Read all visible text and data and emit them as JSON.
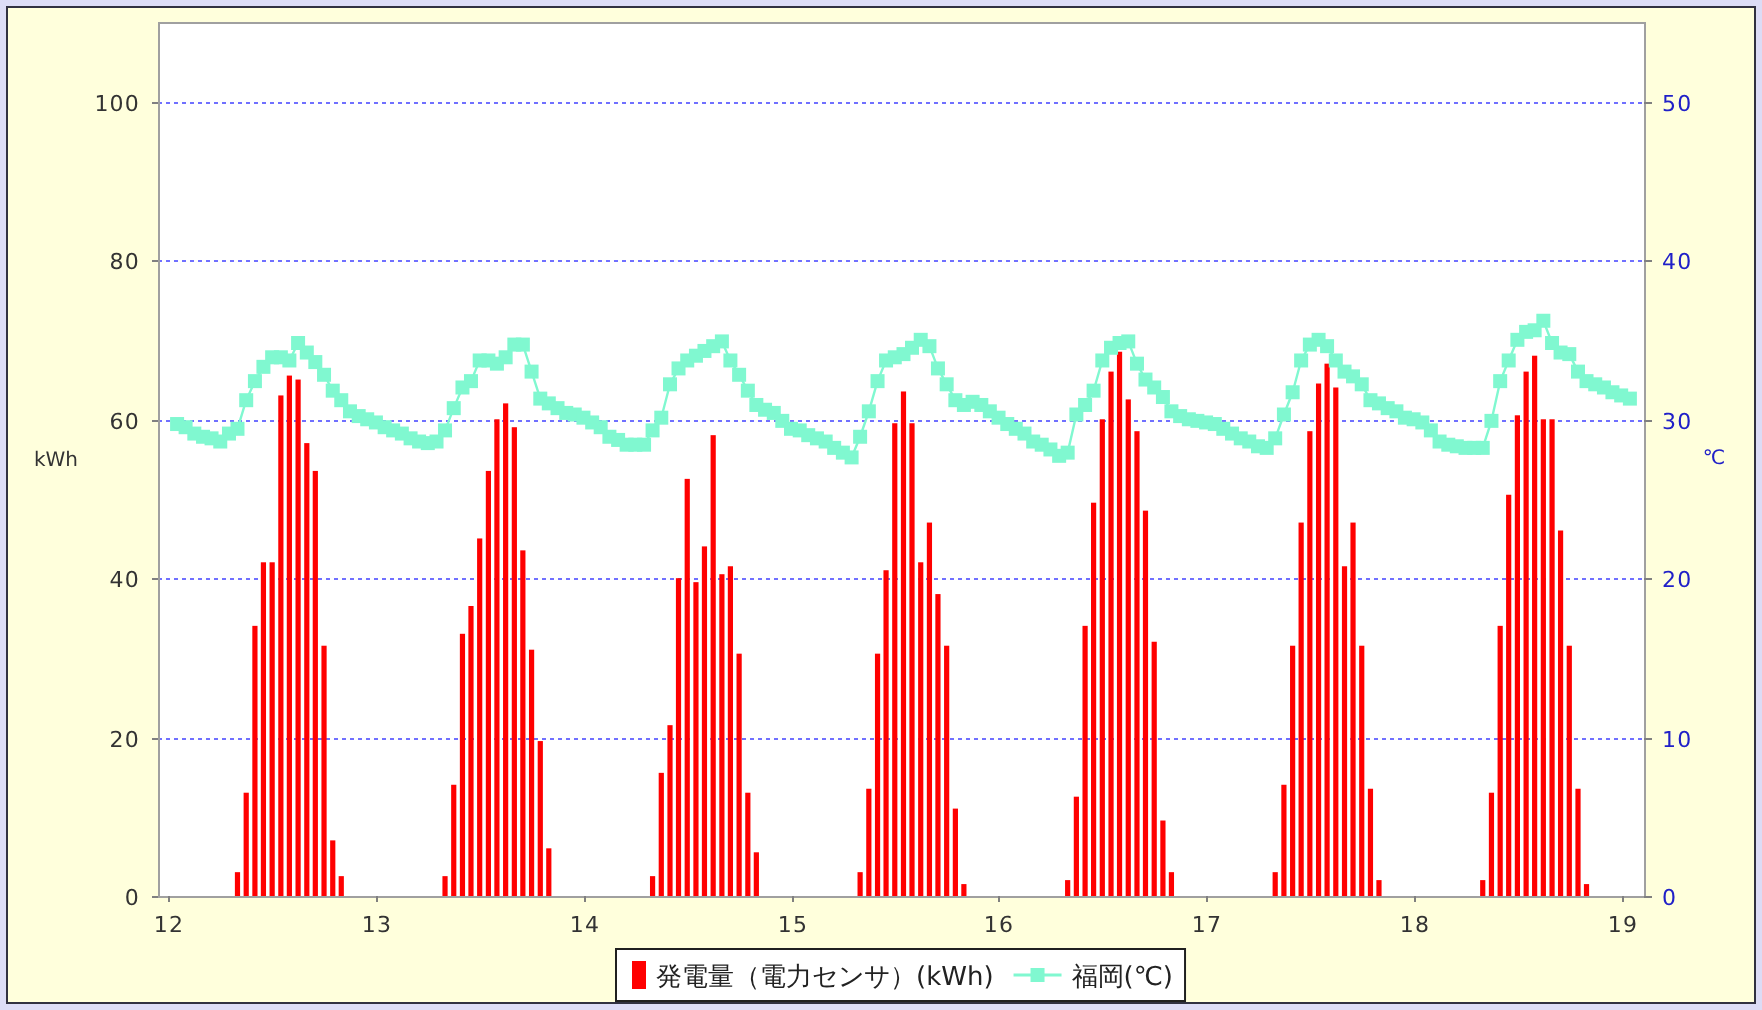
{
  "chart_data": {
    "type": "bar",
    "ylabel": "kWh",
    "y2label": "℃",
    "xlim": [
      11.95,
      19.11
    ],
    "xticks": [
      12,
      13,
      14,
      15,
      16,
      17,
      18,
      19
    ],
    "ylim": [
      0,
      110
    ],
    "yticks": [
      0,
      20,
      40,
      60,
      80,
      100
    ],
    "y2lim": [
      0,
      55
    ],
    "y2ticks": [
      0,
      10,
      20,
      30,
      40,
      50
    ],
    "grid": "y",
    "legend": "bottom",
    "series": [
      {
        "name": "発電量（電力センサ）(kWh)",
        "color": "#ff0000",
        "x": [
          12.333,
          12.375,
          12.417,
          12.458,
          12.5,
          12.542,
          12.583,
          12.625,
          12.667,
          12.708,
          12.75,
          12.792,
          12.833,
          13.333,
          13.375,
          13.417,
          13.458,
          13.5,
          13.542,
          13.583,
          13.625,
          13.667,
          13.708,
          13.75,
          13.792,
          13.833,
          14.333,
          14.375,
          14.417,
          14.458,
          14.5,
          14.542,
          14.583,
          14.625,
          14.667,
          14.708,
          14.75,
          14.792,
          14.833,
          15.333,
          15.375,
          15.417,
          15.458,
          15.5,
          15.542,
          15.583,
          15.625,
          15.667,
          15.708,
          15.75,
          15.792,
          15.833,
          16.333,
          16.375,
          16.417,
          16.458,
          16.5,
          16.542,
          16.583,
          16.625,
          16.667,
          16.708,
          16.75,
          16.792,
          16.833,
          17.333,
          17.375,
          17.417,
          17.458,
          17.5,
          17.542,
          17.583,
          17.625,
          17.667,
          17.708,
          17.75,
          17.792,
          17.833,
          18.333,
          18.375,
          18.417,
          18.458,
          18.5,
          18.542,
          18.583,
          18.625,
          18.667,
          18.708,
          18.75,
          18.792,
          18.833
        ],
        "values": [
          3,
          13,
          34,
          42,
          42,
          63,
          65.5,
          65,
          57,
          53.5,
          31.5,
          7,
          2.5,
          2.5,
          14,
          33,
          36.5,
          45,
          53.5,
          60,
          62,
          59,
          43.5,
          31,
          19.5,
          6,
          2.5,
          15.5,
          21.5,
          40,
          52.5,
          39.5,
          44,
          58,
          40.5,
          41.5,
          30.5,
          13,
          5.5,
          3,
          13.5,
          30.5,
          41,
          59.5,
          63.5,
          59.5,
          42,
          47,
          38,
          31.5,
          11,
          1.5,
          2,
          12.5,
          34,
          49.5,
          60,
          66,
          68.5,
          62.5,
          58.5,
          48.5,
          32,
          9.5,
          3,
          3,
          14,
          31.5,
          47,
          58.5,
          64.5,
          67,
          64,
          41.5,
          47,
          31.5,
          13.5,
          2,
          2,
          13,
          34,
          50.5,
          60.5,
          66,
          68,
          60,
          60,
          46,
          31.5,
          13.5,
          1.5
        ]
      },
      {
        "name": "福岡(℃)",
        "type": "line",
        "axis": "y2",
        "color": "#80f8d0",
        "marker": "square",
        "line_style": "solid",
        "x": [
          12.042,
          12.083,
          12.125,
          12.167,
          12.208,
          12.25,
          12.292,
          12.333,
          12.375,
          12.417,
          12.458,
          12.5,
          12.542,
          12.583,
          12.625,
          12.667,
          12.708,
          12.75,
          12.792,
          12.833,
          12.875,
          12.917,
          12.958,
          13,
          13.042,
          13.083,
          13.125,
          13.167,
          13.208,
          13.25,
          13.292,
          13.333,
          13.375,
          13.417,
          13.458,
          13.5,
          13.542,
          13.583,
          13.625,
          13.667,
          13.708,
          13.75,
          13.792,
          13.833,
          13.875,
          13.917,
          13.958,
          14,
          14.042,
          14.083,
          14.125,
          14.167,
          14.208,
          14.25,
          14.292,
          14.333,
          14.375,
          14.417,
          14.458,
          14.5,
          14.542,
          14.583,
          14.625,
          14.667,
          14.708,
          14.75,
          14.792,
          14.833,
          14.875,
          14.917,
          14.958,
          15,
          15.042,
          15.083,
          15.125,
          15.167,
          15.208,
          15.25,
          15.292,
          15.333,
          15.375,
          15.417,
          15.458,
          15.5,
          15.542,
          15.583,
          15.625,
          15.667,
          15.708,
          15.75,
          15.792,
          15.833,
          15.875,
          15.917,
          15.958,
          16,
          16.042,
          16.083,
          16.125,
          16.167,
          16.208,
          16.25,
          16.292,
          16.333,
          16.375,
          16.417,
          16.458,
          16.5,
          16.542,
          16.583,
          16.625,
          16.667,
          16.708,
          16.75,
          16.792,
          16.833,
          16.875,
          16.917,
          16.958,
          17,
          17.042,
          17.083,
          17.125,
          17.167,
          17.208,
          17.25,
          17.292,
          17.333,
          17.375,
          17.417,
          17.458,
          17.5,
          17.542,
          17.583,
          17.625,
          17.667,
          17.708,
          17.75,
          17.792,
          17.833,
          17.875,
          17.917,
          17.958,
          18,
          18.042,
          18.083,
          18.125,
          18.167,
          18.208,
          18.25,
          18.292,
          18.333,
          18.375,
          18.417,
          18.458,
          18.5,
          18.542,
          18.583,
          18.625,
          18.667,
          18.708,
          18.75,
          18.792,
          18.833,
          18.875,
          18.917,
          18.958,
          19,
          19.042
        ],
        "values": [
          29.7,
          29.5,
          29.1,
          28.9,
          28.8,
          28.6,
          29.1,
          29.4,
          31.2,
          32.4,
          33.3,
          33.9,
          33.9,
          33.7,
          34.8,
          34.2,
          33.6,
          32.8,
          31.8,
          31.2,
          30.5,
          30.2,
          30.0,
          29.8,
          29.5,
          29.3,
          29.1,
          28.8,
          28.6,
          28.5,
          28.6,
          29.3,
          30.7,
          32.0,
          32.4,
          33.7,
          33.7,
          33.5,
          33.9,
          34.7,
          34.7,
          33.0,
          31.3,
          31.0,
          30.7,
          30.4,
          30.3,
          30.1,
          29.8,
          29.5,
          28.9,
          28.7,
          28.4,
          28.4,
          28.4,
          29.3,
          30.1,
          32.2,
          33.2,
          33.7,
          34.0,
          34.3,
          34.6,
          34.9,
          33.7,
          32.8,
          31.8,
          30.9,
          30.6,
          30.4,
          29.9,
          29.4,
          29.3,
          29.0,
          28.8,
          28.6,
          28.2,
          27.9,
          27.6,
          28.9,
          30.5,
          32.4,
          33.7,
          33.9,
          34.1,
          34.5,
          35.0,
          34.6,
          33.2,
          32.2,
          31.2,
          30.9,
          31.1,
          30.9,
          30.5,
          30.1,
          29.7,
          29.4,
          29.1,
          28.6,
          28.4,
          28.1,
          27.7,
          27.9,
          30.3,
          30.9,
          31.8,
          33.7,
          34.5,
          34.8,
          34.9,
          33.5,
          32.5,
          32.0,
          31.4,
          30.5,
          30.2,
          30.0,
          29.9,
          29.8,
          29.7,
          29.4,
          29.1,
          28.8,
          28.6,
          28.3,
          28.2,
          28.8,
          30.3,
          31.7,
          33.7,
          34.7,
          35.0,
          34.6,
          33.7,
          33.0,
          32.7,
          32.2,
          31.2,
          31.0,
          30.7,
          30.5,
          30.1,
          30.0,
          29.8,
          29.3,
          28.6,
          28.4,
          28.3,
          28.2,
          28.2,
          28.2,
          29.9,
          32.4,
          33.7,
          35.0,
          35.5,
          35.6,
          36.2,
          34.8,
          34.2,
          34.1,
          33.0,
          32.4,
          32.2,
          32.0,
          31.7,
          31.5,
          31.3
        ]
      }
    ]
  }
}
